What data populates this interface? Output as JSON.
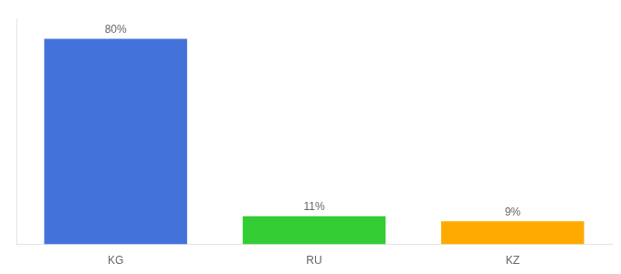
{
  "chart_data": {
    "type": "bar",
    "categories": [
      "KG",
      "RU",
      "KZ"
    ],
    "values": [
      80,
      11,
      9
    ],
    "value_labels": [
      "80%",
      "11%",
      "9%"
    ],
    "colors": [
      "#4472db",
      "#33cc33",
      "#ffaa00"
    ],
    "ylim": [
      0,
      88
    ],
    "data_labels": true,
    "tick_labels": "x",
    "grid": false
  }
}
